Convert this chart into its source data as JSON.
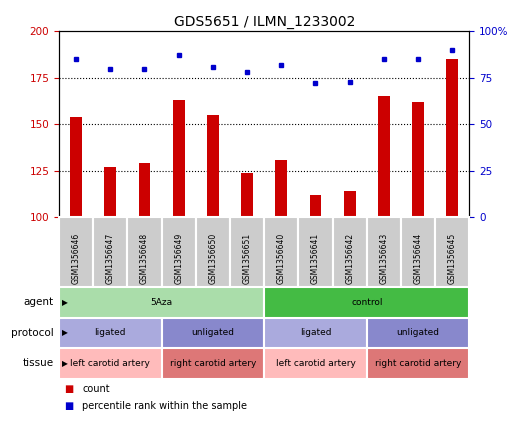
{
  "title": "GDS5651 / ILMN_1233002",
  "samples": [
    "GSM1356646",
    "GSM1356647",
    "GSM1356648",
    "GSM1356649",
    "GSM1356650",
    "GSM1356651",
    "GSM1356640",
    "GSM1356641",
    "GSM1356642",
    "GSM1356643",
    "GSM1356644",
    "GSM1356645"
  ],
  "counts": [
    154,
    127,
    129,
    163,
    155,
    124,
    131,
    112,
    114,
    165,
    162,
    185
  ],
  "percentiles": [
    85,
    80,
    80,
    87,
    81,
    78,
    82,
    72,
    73,
    85,
    85,
    90
  ],
  "ylim_left": [
    100,
    200
  ],
  "ylim_right": [
    0,
    100
  ],
  "yticks_left": [
    100,
    125,
    150,
    175,
    200
  ],
  "yticks_right": [
    0,
    25,
    50,
    75,
    100
  ],
  "ytick_right_labels": [
    "0",
    "25",
    "50",
    "75",
    "100%"
  ],
  "hlines": [
    125,
    150,
    175
  ],
  "bar_color": "#cc0000",
  "dot_color": "#0000cc",
  "agent_5aza_color": "#aaddaa",
  "agent_control_color": "#44bb44",
  "protocol_ligated_color": "#aaaadd",
  "protocol_unligated_color": "#8888cc",
  "tissue_left_color": "#ffbbbb",
  "tissue_right_color": "#dd7777",
  "sample_bg_color": "#cccccc",
  "sample_border_color": "#ffffff",
  "grid_line_color": "#000000",
  "agent_row": [
    {
      "label": "5Aza",
      "start": 0,
      "end": 6
    },
    {
      "label": "control",
      "start": 6,
      "end": 12
    }
  ],
  "protocol_row": [
    {
      "label": "ligated",
      "start": 0,
      "end": 3
    },
    {
      "label": "unligated",
      "start": 3,
      "end": 6
    },
    {
      "label": "ligated",
      "start": 6,
      "end": 9
    },
    {
      "label": "unligated",
      "start": 9,
      "end": 12
    }
  ],
  "tissue_row": [
    {
      "label": "left carotid artery",
      "start": 0,
      "end": 3
    },
    {
      "label": "right carotid artery",
      "start": 3,
      "end": 6
    },
    {
      "label": "left carotid artery",
      "start": 6,
      "end": 9
    },
    {
      "label": "right carotid artery",
      "start": 9,
      "end": 12
    }
  ],
  "row_labels": [
    "agent",
    "protocol",
    "tissue"
  ],
  "legend_count_color": "#cc0000",
  "legend_dot_color": "#0000cc",
  "bar_width": 0.35
}
